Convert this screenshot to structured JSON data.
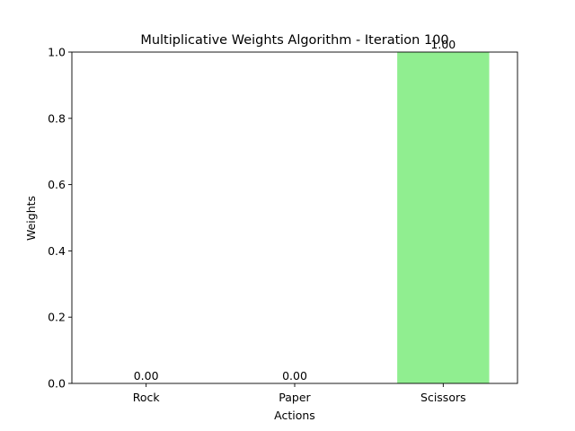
{
  "chart_data": {
    "type": "bar",
    "title": "Multiplicative Weights Algorithm - Iteration 100",
    "xlabel": "Actions",
    "ylabel": "Weights",
    "categories": [
      "Rock",
      "Paper",
      "Scissors"
    ],
    "values": [
      0.0,
      0.0,
      1.0
    ],
    "value_labels": [
      "0.00",
      "0.00",
      "1.00"
    ],
    "ylim": [
      0,
      1
    ],
    "yticks": [
      0.0,
      0.2,
      0.4,
      0.6,
      0.8,
      1.0
    ],
    "ytick_labels": [
      "0.0",
      "0.2",
      "0.4",
      "0.6",
      "0.8",
      "1.0"
    ],
    "bar_color": "#90ee90",
    "grid": false,
    "legend": "none"
  }
}
